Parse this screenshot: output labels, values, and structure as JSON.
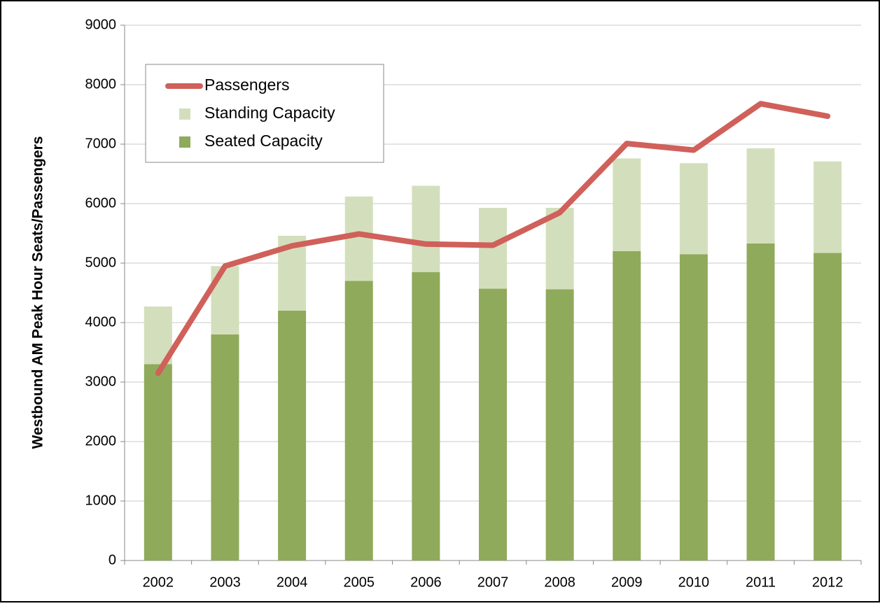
{
  "chart_data": {
    "type": "stacked_bar_line",
    "y_label": "Westbound AM Peak Hour Seats/Passengers",
    "categories": [
      "2002",
      "2003",
      "2004",
      "2005",
      "2006",
      "2007",
      "2008",
      "2009",
      "2010",
      "2011",
      "2012"
    ],
    "series": [
      {
        "name": "Seated Capacity",
        "color": "#8faa5a",
        "kind": "bar",
        "values": [
          3300,
          3800,
          4200,
          4700,
          4850,
          4570,
          4560,
          5200,
          5150,
          5330,
          5170
        ]
      },
      {
        "name": "Standing Capacity",
        "color": "#d3dfbc",
        "kind": "bar",
        "values": [
          970,
          1150,
          1260,
          1420,
          1450,
          1360,
          1370,
          1560,
          1530,
          1600,
          1540
        ]
      },
      {
        "name": "Passengers",
        "color": "#d0605a",
        "kind": "line",
        "values": [
          3150,
          4950,
          5290,
          5490,
          5320,
          5300,
          5850,
          7010,
          6900,
          7680,
          7470
        ]
      }
    ],
    "legend_order": [
      2,
      1,
      0
    ],
    "legend": "upper left",
    "ylim": [
      0,
      9000
    ],
    "yticks": [
      0,
      1000,
      2000,
      3000,
      4000,
      5000,
      6000,
      7000,
      8000,
      9000
    ],
    "grid": true
  }
}
